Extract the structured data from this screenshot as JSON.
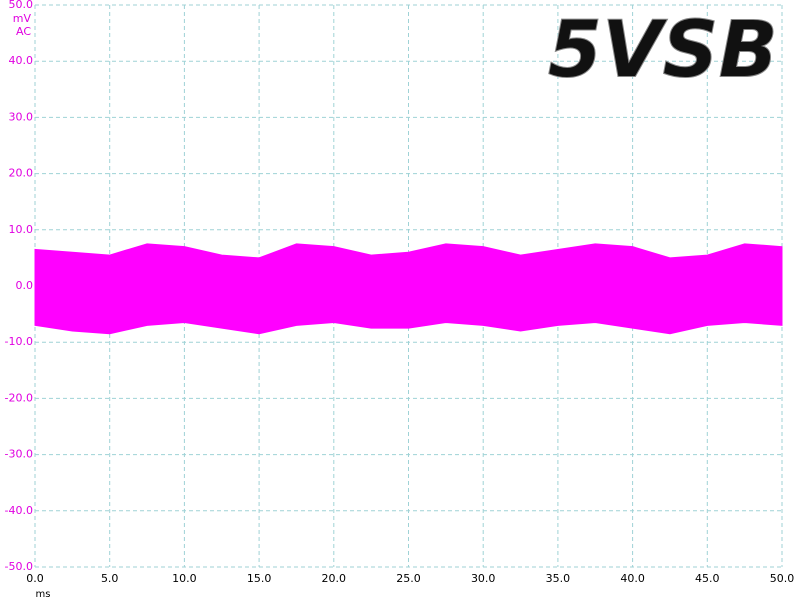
{
  "chart_data": {
    "type": "band",
    "title": "5VSB",
    "y_unit": "mV",
    "coupling": "AC",
    "x_unit": "ms",
    "x": [
      0,
      2.5,
      5,
      7.5,
      10,
      12.5,
      15,
      17.5,
      20,
      22.5,
      25,
      27.5,
      30,
      32.5,
      35,
      37.5,
      40,
      42.5,
      45,
      47.5,
      50
    ],
    "series": [
      {
        "color": "#ff00ff",
        "values": [
          6.5,
          6,
          5.5,
          7.5,
          7,
          5.5,
          5,
          7.5,
          7,
          5.5,
          6,
          7.5,
          7,
          5.5,
          6.5,
          7.5,
          7,
          5,
          5.5,
          7.5,
          7
        ]
      },
      {
        "color": "#ff00ff",
        "values": [
          -7,
          -8,
          -8.5,
          -7,
          -6.5,
          -7.5,
          -8.5,
          -7,
          -6.5,
          -7.5,
          -7.5,
          -6.5,
          -7,
          -8,
          -7,
          -6.5,
          -7.5,
          -8.5,
          -7,
          -6.5,
          -7
        ]
      }
    ],
    "xlim": [
      0,
      50
    ],
    "ylim": [
      -50,
      50
    ],
    "xticks": [
      {
        "value": 0,
        "label": "0.0"
      },
      {
        "value": 5,
        "label": "5.0"
      },
      {
        "value": 10,
        "label": "10.0"
      },
      {
        "value": 15,
        "label": "15.0"
      },
      {
        "value": 20,
        "label": "20.0"
      },
      {
        "value": 25,
        "label": "25.0"
      },
      {
        "value": 30,
        "label": "30.0"
      },
      {
        "value": 35,
        "label": "35.0"
      },
      {
        "value": 40,
        "label": "40.0"
      },
      {
        "value": 45,
        "label": "45.0"
      },
      {
        "value": 50,
        "label": "50.0"
      }
    ],
    "yticks": [
      {
        "value": 50,
        "label": "50.0"
      },
      {
        "value": 40,
        "label": "40.0"
      },
      {
        "value": 30,
        "label": "30.0"
      },
      {
        "value": 20,
        "label": "20.0"
      },
      {
        "value": 10,
        "label": "10.0"
      },
      {
        "value": 0,
        "label": "0.0"
      },
      {
        "value": -10,
        "label": "-10.0"
      },
      {
        "value": -20,
        "label": "-20.0"
      },
      {
        "value": -30,
        "label": "-30.0"
      },
      {
        "value": -40,
        "label": "-40.0"
      },
      {
        "value": -50,
        "label": "-50.0"
      }
    ],
    "grid": true
  }
}
